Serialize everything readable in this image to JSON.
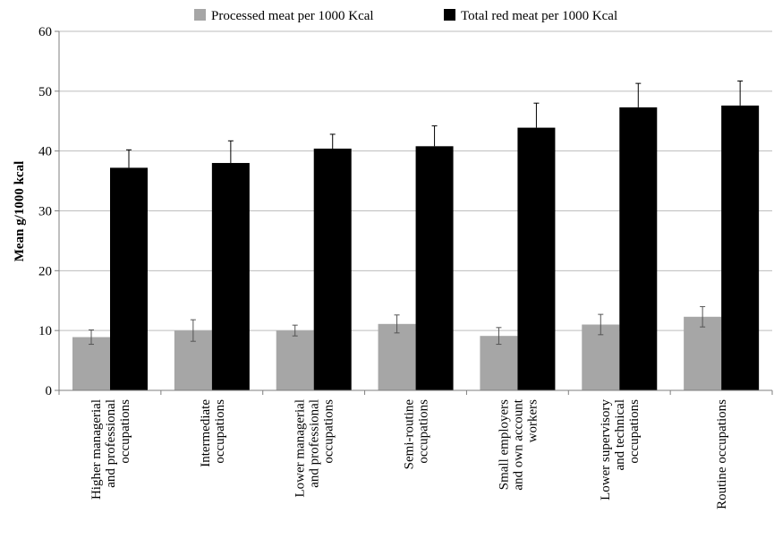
{
  "chart_data": {
    "type": "bar",
    "title": "",
    "xlabel": "",
    "ylabel": "Mean g/1000 kcal",
    "ylim": [
      0,
      60
    ],
    "yticks": [
      0,
      10,
      20,
      30,
      40,
      50,
      60
    ],
    "grid": true,
    "legend_position": "top",
    "categories": [
      [
        "Higher managerial",
        "and professional",
        "occupations"
      ],
      [
        "Intermediate",
        "occupations"
      ],
      [
        "Lower managerial",
        "and professional",
        "occupations"
      ],
      [
        "Semi-routine",
        "occupations"
      ],
      [
        "Small employers",
        "and own account",
        "workers"
      ],
      [
        "Lower supervisory",
        "and technical",
        "occupations"
      ],
      [
        "Routine occupations"
      ]
    ],
    "series": [
      {
        "name": "Processed meat per 1000 Kcal",
        "color": "#a6a6a6",
        "values": [
          8.9,
          10.0,
          10.0,
          11.1,
          9.1,
          11.0,
          12.3
        ],
        "errors": [
          1.2,
          1.8,
          0.9,
          1.5,
          1.4,
          1.7,
          1.7
        ]
      },
      {
        "name": "Total red meat per 1000 Kcal",
        "color": "#000000",
        "values": [
          37.2,
          38.0,
          40.4,
          40.8,
          43.9,
          47.3,
          47.6
        ],
        "errors": [
          3.0,
          3.7,
          2.4,
          3.4,
          4.1,
          4.0,
          4.1
        ]
      }
    ]
  }
}
